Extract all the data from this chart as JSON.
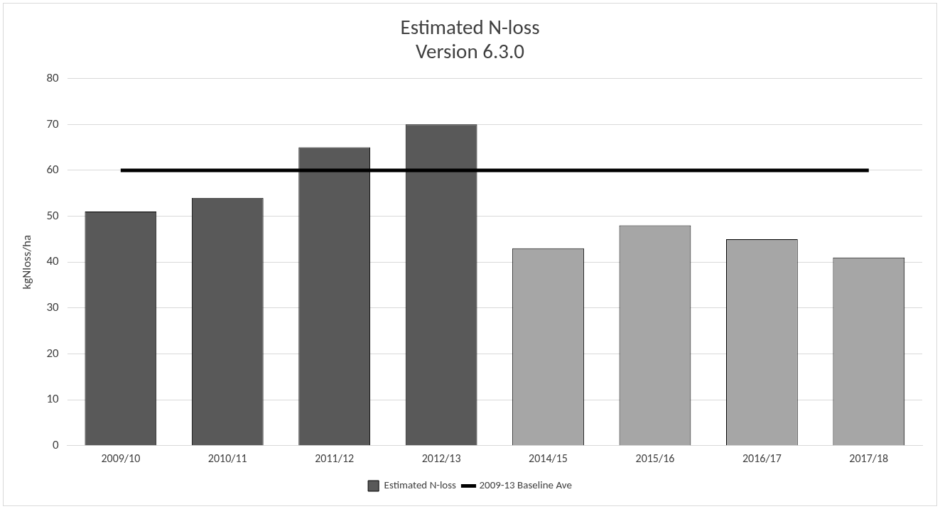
{
  "chart_data": {
    "type": "bar",
    "title": "Estimated N-loss",
    "subtitle": "Version 6.3.0",
    "ylabel": "kgNloss/ha",
    "categories": [
      "2009/10",
      "2010/11",
      "2011/12",
      "2012/13",
      "2014/15",
      "2015/16",
      "2016/17",
      "2017/18"
    ],
    "series": [
      {
        "name": "Estimated N-loss",
        "colors": [
          "#595959",
          "#595959",
          "#595959",
          "#595959",
          "#a6a6a6",
          "#a6a6a6",
          "#a6a6a6",
          "#a6a6a6"
        ],
        "values": [
          51,
          54,
          65,
          70,
          43,
          48,
          45,
          41
        ]
      },
      {
        "name": "2009-13 Baseline Ave",
        "type": "line",
        "color": "#000000",
        "values": [
          60,
          60,
          60,
          60,
          60,
          60,
          60,
          60
        ]
      }
    ],
    "ylim": [
      0,
      80
    ],
    "yticks": [
      0,
      10,
      20,
      30,
      40,
      50,
      60,
      70,
      80
    ],
    "grid": "y",
    "legend": "bottom",
    "marker": "none"
  }
}
